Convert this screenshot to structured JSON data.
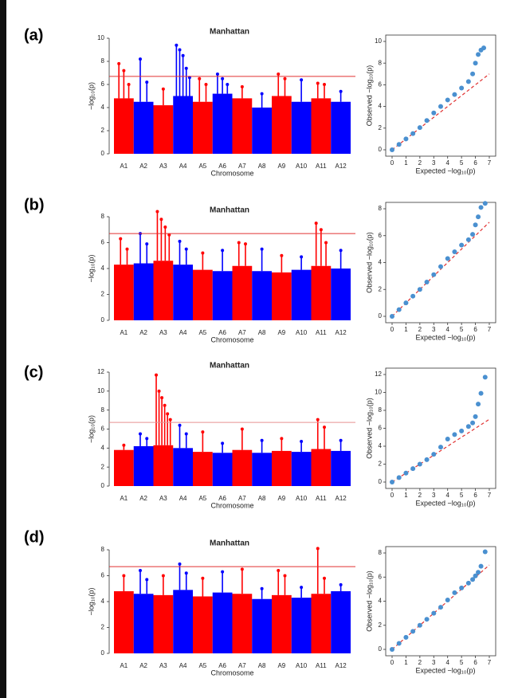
{
  "chart_data": [
    {
      "type": "manhattan",
      "label": "(a)",
      "title": "Manhattan",
      "ylabel": "−log₁₀(p)",
      "xlabel": "Chromosome",
      "categories": [
        "A1",
        "A2",
        "A3",
        "A4",
        "A5",
        "A6",
        "A7",
        "A8",
        "A9",
        "A10",
        "A11",
        "A12"
      ],
      "colors": [
        "#ff0000",
        "#0000ff"
      ],
      "values": [
        4.8,
        4.5,
        4.2,
        5.0,
        4.5,
        5.2,
        4.8,
        4.0,
        5.0,
        4.5,
        4.8,
        4.5
      ],
      "peaks": [
        [
          7.8,
          7.2,
          6.0
        ],
        [
          8.2,
          6.2
        ],
        [
          5.6
        ],
        [
          9.4,
          9.0,
          8.5,
          7.4,
          6.6
        ],
        [
          6.5,
          6.0
        ],
        [
          6.9,
          6.5,
          6.0
        ],
        [
          5.8
        ],
        [
          5.2
        ],
        [
          6.9,
          6.5
        ],
        [
          6.4
        ],
        [
          6.1,
          6.0
        ],
        [
          5.4
        ]
      ],
      "threshold": 6.7,
      "threshold_color": "#e03030",
      "ylim": [
        0,
        10
      ],
      "yticks": [
        0,
        2,
        4,
        6,
        8,
        10
      ]
    },
    {
      "type": "qq",
      "xlabel": "Expected  −log₁₀(p)",
      "ylabel": "Observed  −log₁₀(p)",
      "color": "#4a90d0",
      "line_color": "#e03030",
      "x": [
        0,
        0.5,
        1,
        1.5,
        2,
        2.5,
        3,
        3.5,
        4,
        4.5,
        5,
        5.5,
        5.8,
        6,
        6.2,
        6.4,
        6.6
      ],
      "y": [
        0,
        0.5,
        1,
        1.5,
        2.05,
        2.7,
        3.4,
        4.0,
        4.6,
        5.1,
        5.7,
        6.3,
        7.0,
        8.0,
        8.8,
        9.2,
        9.4
      ],
      "xlim": [
        0,
        7
      ],
      "xticks": [
        0,
        1,
        2,
        3,
        4,
        5,
        6,
        7
      ],
      "ylim": [
        0,
        10
      ],
      "yticks": [
        0,
        2,
        4,
        6,
        8,
        10
      ]
    },
    {
      "type": "manhattan",
      "label": "(b)",
      "title": "Manhattan",
      "ylabel": "−log₁₀(p)",
      "xlabel": "Chromosome",
      "categories": [
        "A1",
        "A2",
        "A3",
        "A4",
        "A5",
        "A6",
        "A7",
        "A8",
        "A9",
        "A10",
        "A11",
        "A12"
      ],
      "colors": [
        "#ff0000",
        "#0000ff"
      ],
      "values": [
        4.3,
        4.4,
        4.6,
        4.3,
        3.9,
        3.8,
        4.2,
        3.8,
        3.7,
        3.9,
        4.2,
        4.0
      ],
      "peaks": [
        [
          6.3,
          5.5
        ],
        [
          6.7,
          5.9
        ],
        [
          8.4,
          7.8,
          7.2,
          6.6
        ],
        [
          6.1,
          5.5
        ],
        [
          5.2
        ],
        [
          5.4
        ],
        [
          6.0,
          5.9
        ],
        [
          5.5
        ],
        [
          5.0
        ],
        [
          4.9
        ],
        [
          7.5,
          7.0,
          6.0
        ],
        [
          5.4
        ]
      ],
      "threshold": 6.7,
      "threshold_color": "#e03030",
      "ylim": [
        0,
        8
      ],
      "yticks": [
        0,
        2,
        4,
        6,
        8
      ]
    },
    {
      "type": "qq",
      "xlabel": "Expected  −log₁₀(p)",
      "ylabel": "Observed  −log₁₀(p)",
      "color": "#4a90d0",
      "line_color": "#e03030",
      "x": [
        0,
        0.5,
        1,
        1.5,
        2,
        2.5,
        3,
        3.5,
        4,
        4.5,
        5,
        5.5,
        5.8,
        6,
        6.2,
        6.4,
        6.7
      ],
      "y": [
        0,
        0.5,
        1,
        1.5,
        2,
        2.55,
        3.1,
        3.7,
        4.3,
        4.8,
        5.3,
        5.7,
        6.1,
        6.8,
        7.4,
        8.1,
        8.4
      ],
      "xlim": [
        0,
        7
      ],
      "xticks": [
        0,
        1,
        2,
        3,
        4,
        5,
        6,
        7
      ],
      "ylim": [
        0,
        8
      ],
      "yticks": [
        0,
        2,
        4,
        6,
        8
      ]
    },
    {
      "type": "manhattan",
      "label": "(c)",
      "title": "Manhattan",
      "ylabel": "−log₁₀(p)",
      "xlabel": "Chromosome",
      "categories": [
        "A1",
        "A2",
        "A3",
        "A4",
        "A5",
        "A6",
        "A7",
        "A8",
        "A9",
        "A10",
        "A11",
        "A12"
      ],
      "colors": [
        "#ff0000",
        "#0000ff"
      ],
      "values": [
        3.8,
        4.2,
        4.3,
        4.0,
        3.6,
        3.5,
        3.8,
        3.5,
        3.7,
        3.6,
        3.9,
        3.7
      ],
      "peaks": [
        [
          4.3
        ],
        [
          5.5,
          5.0
        ],
        [
          11.7,
          10.0,
          9.3,
          8.5,
          7.6,
          7.0
        ],
        [
          6.4,
          5.5
        ],
        [
          5.7
        ],
        [
          4.5
        ],
        [
          6.0
        ],
        [
          4.8
        ],
        [
          5.0
        ],
        [
          4.7
        ],
        [
          7.0,
          6.2
        ],
        [
          4.8
        ]
      ],
      "threshold": 6.7,
      "threshold_color": "#e89090",
      "ylim": [
        0,
        12
      ],
      "yticks": [
        0,
        2,
        4,
        6,
        8,
        10,
        12
      ]
    },
    {
      "type": "qq",
      "xlabel": "Expected  −log₁₀(p)",
      "ylabel": "Observed  −log₁₀(p)",
      "color": "#4a90d0",
      "line_color": "#e03030",
      "x": [
        0,
        0.5,
        1,
        1.5,
        2,
        2.5,
        3,
        3.5,
        4,
        4.5,
        5,
        5.5,
        5.8,
        6,
        6.2,
        6.4,
        6.7
      ],
      "y": [
        0,
        0.5,
        1,
        1.5,
        2,
        2.5,
        3.1,
        3.9,
        4.8,
        5.3,
        5.7,
        6.2,
        6.6,
        7.3,
        8.7,
        9.9,
        11.7
      ],
      "xlim": [
        0,
        7
      ],
      "xticks": [
        0,
        1,
        2,
        3,
        4,
        5,
        6,
        7
      ],
      "ylim": [
        0,
        12
      ],
      "yticks": [
        0,
        2,
        4,
        6,
        8,
        10,
        12
      ]
    },
    {
      "type": "manhattan",
      "label": "(d)",
      "title": "Manhattan",
      "ylabel": "−log₁₀(p)",
      "xlabel": "Chromosome",
      "categories": [
        "A1",
        "A2",
        "A3",
        "A4",
        "A5",
        "A6",
        "A7",
        "A8",
        "A9",
        "A10",
        "A11",
        "A12"
      ],
      "colors": [
        "#ff0000",
        "#0000ff"
      ],
      "values": [
        4.8,
        4.6,
        4.5,
        4.9,
        4.4,
        4.7,
        4.6,
        4.2,
        4.5,
        4.3,
        4.6,
        4.8
      ],
      "peaks": [
        [
          6.0
        ],
        [
          6.4,
          5.7
        ],
        [
          6.0
        ],
        [
          6.9,
          6.2
        ],
        [
          5.8
        ],
        [
          6.3
        ],
        [
          6.5
        ],
        [
          5.0
        ],
        [
          6.4,
          6.0
        ],
        [
          5.1
        ],
        [
          8.1,
          5.8
        ],
        [
          5.3
        ]
      ],
      "threshold": 6.7,
      "threshold_color": "#e03030",
      "ylim": [
        0,
        8
      ],
      "yticks": [
        0,
        2,
        4,
        6,
        8
      ]
    },
    {
      "type": "qq",
      "xlabel": "Expected  −log₁₀(p)",
      "ylabel": "Observed  −log₁₀(p)",
      "color": "#4a90d0",
      "line_color": "#e03030",
      "x": [
        0,
        0.5,
        1,
        1.5,
        2,
        2.5,
        3,
        3.5,
        4,
        4.5,
        5,
        5.5,
        5.8,
        6,
        6.2,
        6.4,
        6.7
      ],
      "y": [
        0,
        0.5,
        1,
        1.5,
        2,
        2.5,
        3,
        3.5,
        4.1,
        4.7,
        5.1,
        5.5,
        5.8,
        6.1,
        6.4,
        6.9,
        8.1
      ],
      "xlim": [
        0,
        7
      ],
      "xticks": [
        0,
        1,
        2,
        3,
        4,
        5,
        6,
        7
      ],
      "ylim": [
        0,
        8
      ],
      "yticks": [
        0,
        2,
        4,
        6,
        8
      ]
    }
  ]
}
